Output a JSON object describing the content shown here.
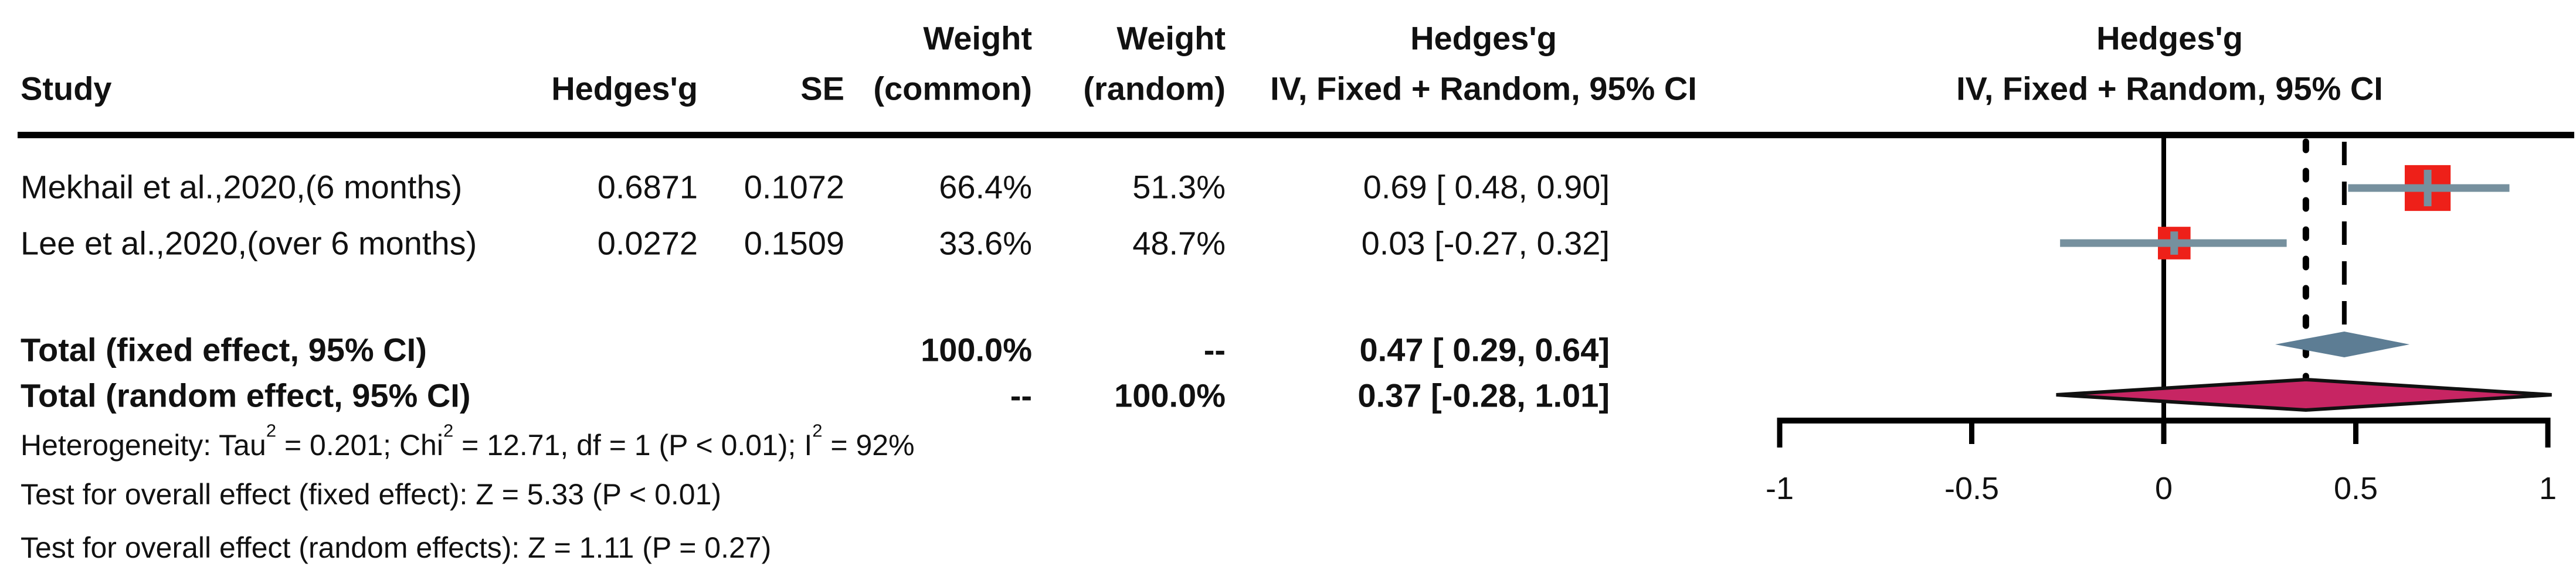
{
  "accent_colors": {
    "square": "#ee2019",
    "ci_line": "#76909e",
    "fixed_diamond": "#5d7d94",
    "random_diamond": "#c72563",
    "diamond_outline": "#111111",
    "axis": "#000000"
  },
  "table": {
    "headers": {
      "study": "Study",
      "hedges_g": "Hedges'g",
      "se": "SE",
      "weight_common": [
        "Weight",
        "(common)"
      ],
      "weight_random": [
        "Weight",
        "(random)"
      ],
      "effect_ci": [
        "Hedges'g",
        "IV, Fixed + Random, 95% CI"
      ],
      "plot": [
        "Hedges'g",
        "IV, Fixed + Random, 95% CI"
      ]
    },
    "rows": [
      {
        "study": "Mekhail et al.,2020,(6 months)",
        "hedges_g": "0.6871",
        "se": "0.1072",
        "weight_common": "66.4%",
        "weight_random": "51.3%",
        "ci_text": "0.69 [ 0.48, 0.90]"
      },
      {
        "study": "Lee et al.,2020,(over 6 months)",
        "hedges_g": "0.0272",
        "se": "0.1509",
        "weight_common": "33.6%",
        "weight_random": "48.7%",
        "ci_text": "0.03 [-0.27, 0.32]"
      }
    ],
    "totals": [
      {
        "label": "Total (fixed effect, 95% CI)",
        "weight_common": "100.0%",
        "weight_random": "--",
        "ci_text": "0.47 [ 0.29, 0.64]"
      },
      {
        "label": "Total (random effect, 95% CI)",
        "weight_common": "--",
        "weight_random": "100.0%",
        "ci_text": "0.37 [-0.28, 1.01]"
      }
    ]
  },
  "footnotes": {
    "heterogeneity_parts": [
      "Heterogeneity: Tau",
      "2",
      " = 0.201; Chi",
      "2",
      " = 12.71, df = 1 (P < 0.01); I",
      "2",
      " = 92%"
    ],
    "test_fixed": "Test for overall effect (fixed effect): Z = 5.33 (P < 0.01)",
    "test_random": "Test for overall effect (random effects): Z = 1.11 (P = 0.27)"
  },
  "chart_data": {
    "type": "forest",
    "effect_measure": "Hedges'g",
    "model": "IV, Fixed + Random, 95% CI",
    "xlim": [
      -1,
      1
    ],
    "x_ticks": [
      -1,
      -0.5,
      0,
      0.5,
      1
    ],
    "reference_value": 0,
    "studies": [
      {
        "name": "Mekhail et al.,2020,(6 months)",
        "estimate": 0.6871,
        "ci_low": 0.48,
        "ci_high": 0.9,
        "weight_common_pct": 66.4,
        "weight_random_pct": 51.3
      },
      {
        "name": "Lee et al.,2020,(over 6 months)",
        "estimate": 0.0272,
        "ci_low": -0.27,
        "ci_high": 0.32,
        "weight_common_pct": 33.6,
        "weight_random_pct": 48.7
      }
    ],
    "pooled": [
      {
        "name": "Total (fixed effect, 95% CI)",
        "estimate": 0.47,
        "ci_low": 0.29,
        "ci_high": 0.64,
        "style": "fixed",
        "guide_line": "dashed"
      },
      {
        "name": "Total (random effect, 95% CI)",
        "estimate": 0.37,
        "ci_low": -0.28,
        "ci_high": 1.01,
        "style": "random",
        "guide_line": "dotted"
      }
    ]
  }
}
